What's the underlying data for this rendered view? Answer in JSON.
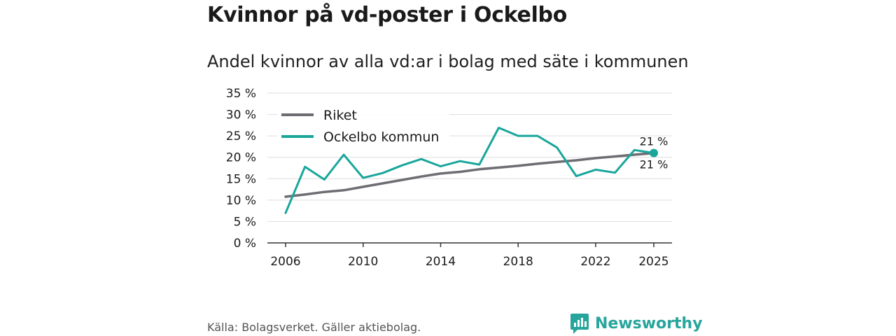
{
  "title": "Kvinnor på vd-poster i Ockelbo",
  "subtitle": "Andel kvinnor av alla vd:ar i bolag med säte i kommunen",
  "source": "Källa: Bolagsverket. Gäller aktiebolag.",
  "brand": {
    "name": "Newsworthy",
    "color": "#27a59c"
  },
  "colors": {
    "riket": "#6e6d73",
    "ockelbo": "#19a69b",
    "grid": "#dddddd"
  },
  "chart_data": {
    "type": "line",
    "x": [
      2006,
      2007,
      2008,
      2009,
      2010,
      2011,
      2012,
      2013,
      2014,
      2015,
      2016,
      2017,
      2018,
      2019,
      2020,
      2021,
      2022,
      2023,
      2024,
      2025
    ],
    "series": [
      {
        "name": "Riket",
        "values": [
          10.8,
          11.3,
          11.9,
          12.3,
          13.1,
          13.9,
          14.7,
          15.5,
          16.2,
          16.6,
          17.2,
          17.6,
          18.0,
          18.5,
          18.9,
          19.3,
          19.8,
          20.2,
          20.6,
          21.0
        ]
      },
      {
        "name": "Ockelbo kommun",
        "values": [
          7.0,
          17.8,
          14.8,
          20.6,
          15.2,
          16.3,
          18.1,
          19.6,
          17.9,
          19.1,
          18.3,
          26.9,
          25.0,
          25.0,
          22.3,
          15.6,
          17.1,
          16.4,
          21.7,
          21.0
        ]
      }
    ],
    "end_labels": {
      "Ockelbo kommun": "21 %",
      "Riket": "21 %"
    },
    "ylim": [
      0,
      35
    ],
    "yticks": [
      0,
      5,
      10,
      15,
      20,
      25,
      30,
      35
    ],
    "ytick_labels": [
      "0 %",
      "5 %",
      "10 %",
      "15 %",
      "20 %",
      "25 %",
      "30 %",
      "35 %"
    ],
    "xticks": [
      2006,
      2010,
      2014,
      2018,
      2022,
      2025
    ],
    "xtick_labels": [
      "2006",
      "2010",
      "2014",
      "2018",
      "2022",
      "2025"
    ],
    "legend_position": "top-left",
    "grid": true,
    "xlabel": "",
    "ylabel": ""
  }
}
